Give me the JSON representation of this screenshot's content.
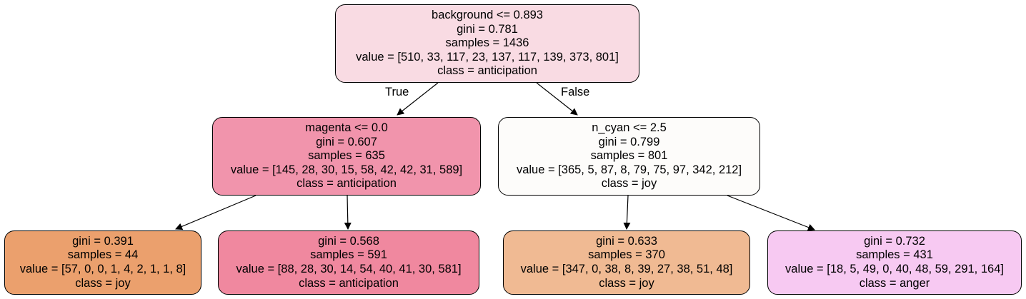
{
  "nodes": [
    {
      "id": "root",
      "lines": [
        "background <= 0.893",
        "gini = 0.781",
        "samples = 1436",
        "value = [510, 33, 117, 23, 137, 117, 139, 373, 801]",
        "class = anticipation"
      ],
      "fill": "#f9dbe3"
    },
    {
      "id": "n1",
      "lines": [
        "magenta <= 0.0",
        "gini = 0.607",
        "samples = 635",
        "value = [145, 28, 30, 15, 58, 42, 42, 31, 589]",
        "class = anticipation"
      ],
      "fill": "#f194ac"
    },
    {
      "id": "n2",
      "lines": [
        "n_cyan <= 2.5",
        "gini = 0.799",
        "samples = 801",
        "value = [365, 5, 87, 8, 79, 75, 97, 342, 212]",
        "class = joy"
      ],
      "fill": "#fdfcfa"
    },
    {
      "id": "n1a",
      "lines": [
        "gini = 0.391",
        "samples = 44",
        "value = [57, 0, 0, 1, 4, 2, 1, 1, 8]",
        "class = joy"
      ],
      "fill": "#eba06d"
    },
    {
      "id": "n1b",
      "lines": [
        "gini = 0.568",
        "samples = 591",
        "value = [88, 28, 30, 14, 54, 40, 41, 30, 581]",
        "class = anticipation"
      ],
      "fill": "#f0889f"
    },
    {
      "id": "n2a",
      "lines": [
        "gini = 0.633",
        "samples = 370",
        "value = [347, 0, 38, 8, 39, 27, 38, 51, 48]",
        "class = joy"
      ],
      "fill": "#f0ba93"
    },
    {
      "id": "n2b",
      "lines": [
        "gini = 0.732",
        "samples = 431",
        "value = [18, 5, 49, 0, 40, 48, 59, 291, 164]",
        "class = anger"
      ],
      "fill": "#f7c9f2"
    }
  ],
  "edge_labels": {
    "true_label": "True",
    "false_label": "False"
  }
}
